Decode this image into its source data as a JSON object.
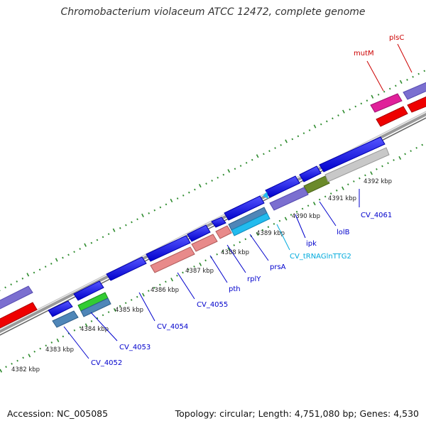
{
  "title": "Chromobacterium violaceum ATCC 12472, complete genome",
  "footer": {
    "accession": "Accession: NC_005085",
    "summary": "Topology: circular; Length: 4,751,080 bp; Genes: 4,530"
  },
  "kbp_labels": [
    "4382 kbp",
    "4383 kbp",
    "4384 kbp",
    "4385 kbp",
    "4386 kbp",
    "4387 kbp",
    "4388 kbp",
    "4389 kbp",
    "4390 kbp",
    "4391 kbp",
    "4392 kbp"
  ],
  "gene_labels": [
    {
      "text": "CV_4052",
      "color": "#0000cc"
    },
    {
      "text": "CV_4053",
      "color": "#0000cc"
    },
    {
      "text": "CV_4054",
      "color": "#0000cc"
    },
    {
      "text": "CV_4055",
      "color": "#0000cc"
    },
    {
      "text": "pth",
      "color": "#0000cc"
    },
    {
      "text": "rplY",
      "color": "#0000cc"
    },
    {
      "text": "prsA",
      "color": "#0000cc"
    },
    {
      "text": "CV_tRNAGlnTTG2",
      "color": "#00aadd"
    },
    {
      "text": "ipk",
      "color": "#0000cc"
    },
    {
      "text": "lolB",
      "color": "#0000cc"
    },
    {
      "text": "CV_4061",
      "color": "#0000cc"
    },
    {
      "text": "mutM",
      "color": "#cc0000"
    },
    {
      "text": "plsC",
      "color": "#cc0000"
    }
  ],
  "colors": {
    "cds_blue": "#1414dd",
    "cds_salmon": "#e88a8a",
    "cds_steel": "#4f86b8",
    "cds_slate": "#7b6fd0",
    "cds_olive": "#6b8a2a",
    "cds_grey": "#c8c8c8",
    "cds_red": "#ee0000",
    "cds_magenta": "#e0209a",
    "trna_cyan": "#22bbee",
    "tick_green": "#2e8b2e",
    "backbone": "#888888"
  }
}
